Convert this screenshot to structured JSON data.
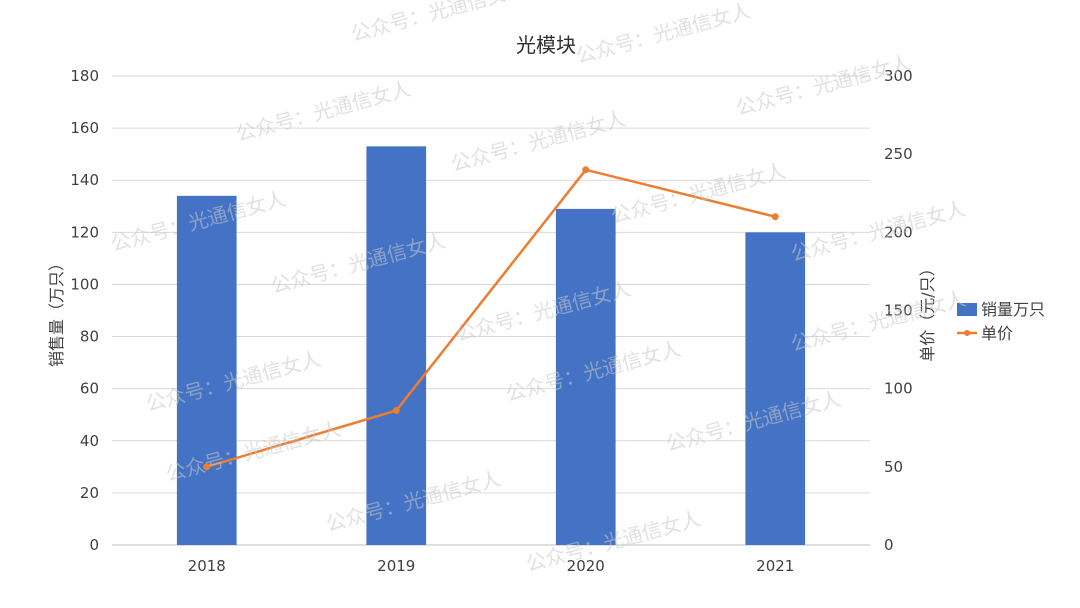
{
  "watermark_text": "公众号：光通信女人",
  "chart_data": {
    "type": "bar",
    "title": "光模块",
    "categories": [
      "2018",
      "2019",
      "2020",
      "2021"
    ],
    "series": [
      {
        "name": "销量万只",
        "type": "bar",
        "axis": "left",
        "color": "#4472C4",
        "values": [
          134,
          153,
          129,
          120
        ]
      },
      {
        "name": "单价",
        "type": "line",
        "axis": "right",
        "color": "#ED7D31",
        "values": [
          50,
          86,
          240,
          210
        ]
      }
    ],
    "ylabel": "销售量（万只）",
    "y2label": "单价（元/只）",
    "ylim": [
      0,
      180
    ],
    "yticks": [
      0,
      20,
      40,
      60,
      80,
      100,
      120,
      140,
      160,
      180
    ],
    "y2lim": [
      0,
      300
    ],
    "y2ticks": [
      0,
      50,
      100,
      150,
      200,
      250,
      300
    ],
    "grid": true,
    "legend_position": "right"
  }
}
